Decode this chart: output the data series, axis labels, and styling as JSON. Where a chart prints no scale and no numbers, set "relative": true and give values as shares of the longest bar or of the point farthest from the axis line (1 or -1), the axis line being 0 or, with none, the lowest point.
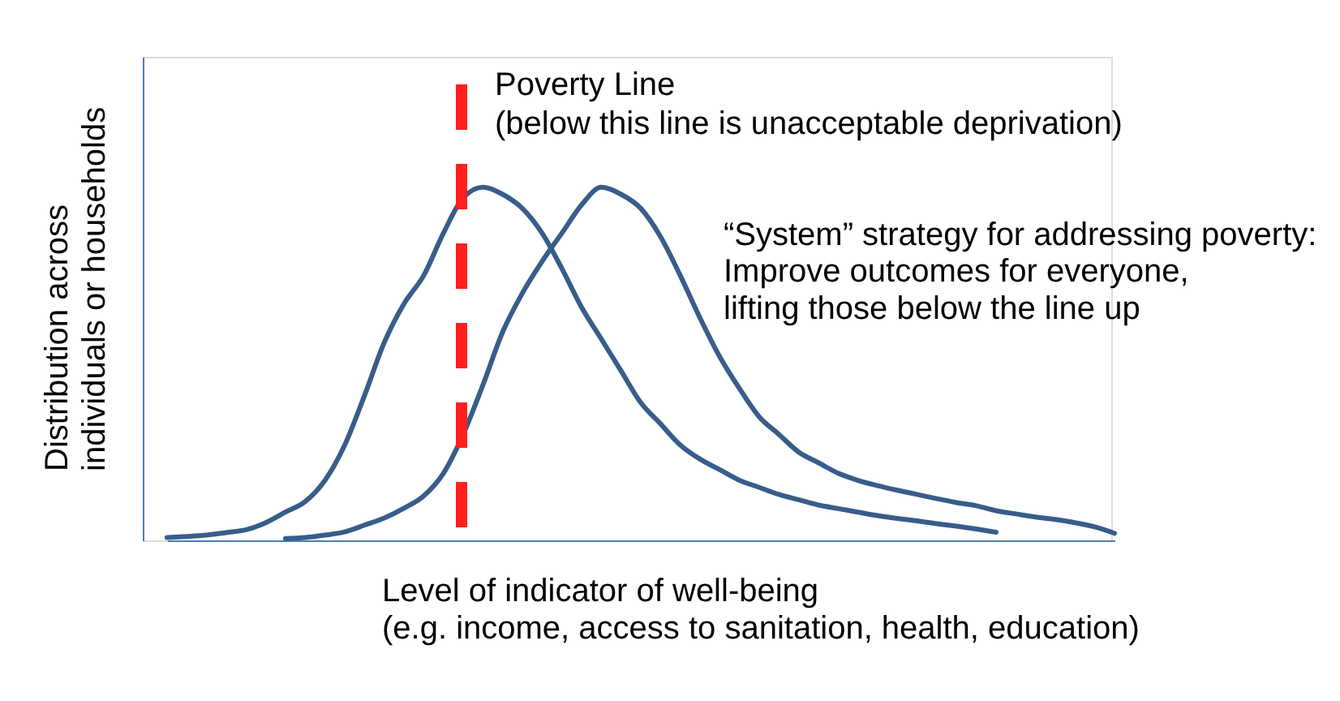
{
  "chart_data": {
    "type": "line",
    "relative": true,
    "xlabel": "Level of indicator of well-being\n(e.g. income, access to sanitation, health, education)",
    "ylabel": "Distribution across\nindividuals or households",
    "categories": [
      null,
      null,
      null,
      null,
      null,
      null,
      null,
      null,
      null,
      null,
      null,
      null,
      null,
      null,
      null,
      null,
      null,
      null,
      null,
      null,
      null,
      null,
      null,
      null,
      null,
      null,
      null,
      null,
      null,
      null,
      null,
      null,
      null,
      null,
      null,
      null,
      null,
      null,
      null,
      null,
      null,
      null,
      null,
      null,
      null,
      null,
      null,
      null,
      null
    ],
    "series": [
      {
        "color": "#385d8a",
        "values": [
          0.008,
          0.011,
          0.015,
          0.022,
          0.03,
          0.05,
          0.08,
          0.11,
          0.17,
          0.27,
          0.41,
          0.56,
          0.67,
          0.75,
          0.87,
          0.97,
          1.0,
          0.98,
          0.94,
          0.87,
          0.77,
          0.66,
          0.57,
          0.48,
          0.39,
          0.33,
          0.27,
          0.23,
          0.2,
          0.17,
          0.15,
          0.13,
          0.115,
          0.1,
          0.09,
          0.08,
          0.07,
          0.062,
          0.055,
          0.047,
          0.04,
          0.032,
          0.023,
          null,
          null,
          null,
          null,
          null,
          null
        ]
      },
      {
        "color": "#385d8a",
        "values": [
          null,
          null,
          null,
          null,
          null,
          null,
          0.005,
          0.008,
          0.015,
          0.024,
          0.043,
          0.063,
          0.091,
          0.126,
          0.19,
          0.3,
          0.44,
          0.59,
          0.7,
          0.79,
          0.87,
          0.95,
          1.0,
          0.98,
          0.94,
          0.86,
          0.75,
          0.63,
          0.52,
          0.43,
          0.35,
          0.3,
          0.25,
          0.22,
          0.19,
          0.17,
          0.155,
          0.142,
          0.13,
          0.118,
          0.107,
          0.098,
          0.084,
          0.075,
          0.066,
          0.059,
          0.05,
          0.038,
          0.02
        ]
      }
    ],
    "annotations": [
      "Poverty Line\n(below this line is unacceptable deprivation)",
      "“System” strategy for addressing poverty:\nImprove outcomes for everyone,\nlifting those below the line up"
    ]
  }
}
